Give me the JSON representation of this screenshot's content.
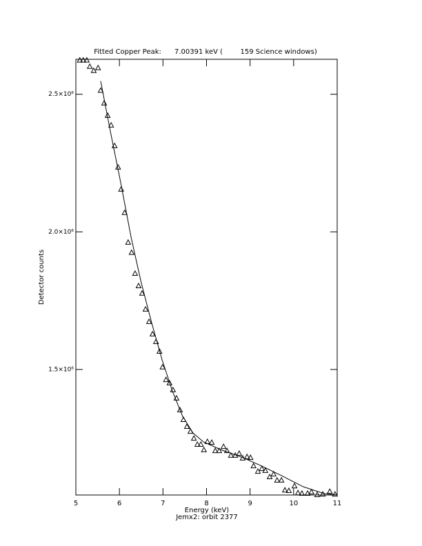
{
  "chart_data": {
    "type": "scatter",
    "title": "Fitted Copper Peak:      7.00391 keV (        159 Science windows)",
    "subtitle": "Jemx2: orbit 2377",
    "x_label": "Energy (keV)",
    "y_label": "Detector counts",
    "xlim": [
      5,
      11
    ],
    "ylim": [
      1044000,
      2627000
    ],
    "xticks": [
      5,
      6,
      7,
      8,
      9,
      10,
      11
    ],
    "yticks": [
      {
        "value": 1500000,
        "label": "1.5×10⁶"
      },
      {
        "value": 2000000,
        "label": "2.0×10⁶"
      },
      {
        "value": 2500000,
        "label": "2.5×10⁶"
      }
    ],
    "series": [
      {
        "marker": "triangle",
        "color": "#000000",
        "x": [
          5.09,
          5.17,
          5.25,
          5.32,
          5.41,
          5.51,
          5.57,
          5.65,
          5.73,
          5.81,
          5.89,
          5.97,
          6.04,
          6.12,
          6.2,
          6.28,
          6.36,
          6.44,
          6.52,
          6.6,
          6.68,
          6.76,
          6.84,
          6.92,
          6.99,
          7.07,
          7.15,
          7.23,
          7.31,
          7.39,
          7.47,
          7.55,
          7.63,
          7.71,
          7.79,
          7.87,
          7.94,
          8.02,
          8.12,
          8.2,
          8.29,
          8.39,
          8.47,
          8.56,
          8.66,
          8.75,
          8.83,
          8.93,
          9.01,
          9.08,
          9.18,
          9.27,
          9.35,
          9.45,
          9.54,
          9.62,
          9.72,
          9.8,
          9.89,
          10.02,
          10.1,
          10.19,
          10.32,
          10.41,
          10.54,
          10.67,
          10.83,
          10.95
        ],
        "values": [
          2623000,
          2623000,
          2623000,
          2600000,
          2585000,
          2595000,
          2513000,
          2467000,
          2422000,
          2387000,
          2312000,
          2234000,
          2154000,
          2069000,
          1961000,
          1924000,
          1848000,
          1803000,
          1776000,
          1718000,
          1673000,
          1628000,
          1600000,
          1565000,
          1508000,
          1462000,
          1450000,
          1425000,
          1395000,
          1352000,
          1317000,
          1292000,
          1274000,
          1249000,
          1227000,
          1227000,
          1207000,
          1237000,
          1234000,
          1204000,
          1204000,
          1219000,
          1204000,
          1187000,
          1187000,
          1194000,
          1177000,
          1182000,
          1179000,
          1149000,
          1129000,
          1139000,
          1132000,
          1109000,
          1119000,
          1097000,
          1097000,
          1061000,
          1059000,
          1076000,
          1051000,
          1049000,
          1049000,
          1054000,
          1044000,
          1046000,
          1056000,
          1046000
        ]
      },
      {
        "marker": "line",
        "color": "#000000",
        "x": [
          5.57,
          5.79,
          6.03,
          6.27,
          6.5,
          6.74,
          6.98,
          7.22,
          7.45,
          7.69,
          7.93,
          8.32,
          8.8,
          9.27,
          9.75,
          10.22,
          10.7,
          11.0
        ],
        "values": [
          2548000,
          2367000,
          2179000,
          1979000,
          1816000,
          1670000,
          1535000,
          1420000,
          1330000,
          1269000,
          1237000,
          1209000,
          1182000,
          1149000,
          1112000,
          1074000,
          1049000,
          1044000
        ]
      }
    ]
  }
}
